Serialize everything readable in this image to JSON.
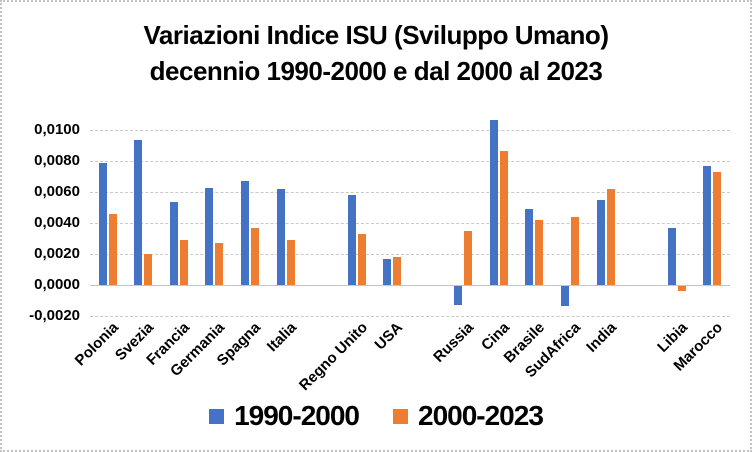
{
  "chart": {
    "title_line1": "Variazioni Indice ISU (Sviluppo Umano)",
    "title_line2": "decennio 1990-2000 e dal 2000 al 2023"
  },
  "chart_data": {
    "type": "bar",
    "title": "Variazioni Indice ISU (Sviluppo Umano) decennio 1990-2000 e dal 2000 al 2023",
    "categories": [
      "Polonia",
      "Svezia",
      "Francia",
      "Germania",
      "Spagna",
      "Italia",
      "",
      "Regno Unito",
      "USA",
      "",
      "Russia",
      "Cina",
      "Brasile",
      "SudAfrica",
      "India",
      "",
      "Libia",
      "Marocco"
    ],
    "series": [
      {
        "name": "1990-2000",
        "color": "#4472C4",
        "values": [
          0.0079,
          0.0094,
          0.0054,
          0.0063,
          0.0067,
          0.0062,
          null,
          0.0058,
          0.0017,
          null,
          -0.0012,
          0.0107,
          0.0049,
          -0.0013,
          0.0055,
          null,
          0.0037,
          0.0077
        ]
      },
      {
        "name": "2000-2023",
        "color": "#ED7D31",
        "values": [
          0.0046,
          0.002,
          0.0029,
          0.0027,
          0.0037,
          0.0029,
          null,
          0.0033,
          0.0018,
          null,
          0.0035,
          0.0087,
          0.0042,
          0.0044,
          0.0062,
          null,
          -0.0003,
          0.0073
        ]
      }
    ],
    "y_axis": {
      "min": -0.002,
      "max": 0.011,
      "tick_interval": 0.002,
      "tick_values": [
        0.01,
        0.008,
        0.006,
        0.004,
        0.002,
        0.0,
        -0.002
      ],
      "tick_labels": [
        "0,0100",
        "0,0080",
        "0,0060",
        "0,0040",
        "0,0020",
        "0,0000",
        "-0,0020"
      ]
    },
    "grid": true,
    "legend_position": "bottom",
    "decimal_style": "comma"
  }
}
